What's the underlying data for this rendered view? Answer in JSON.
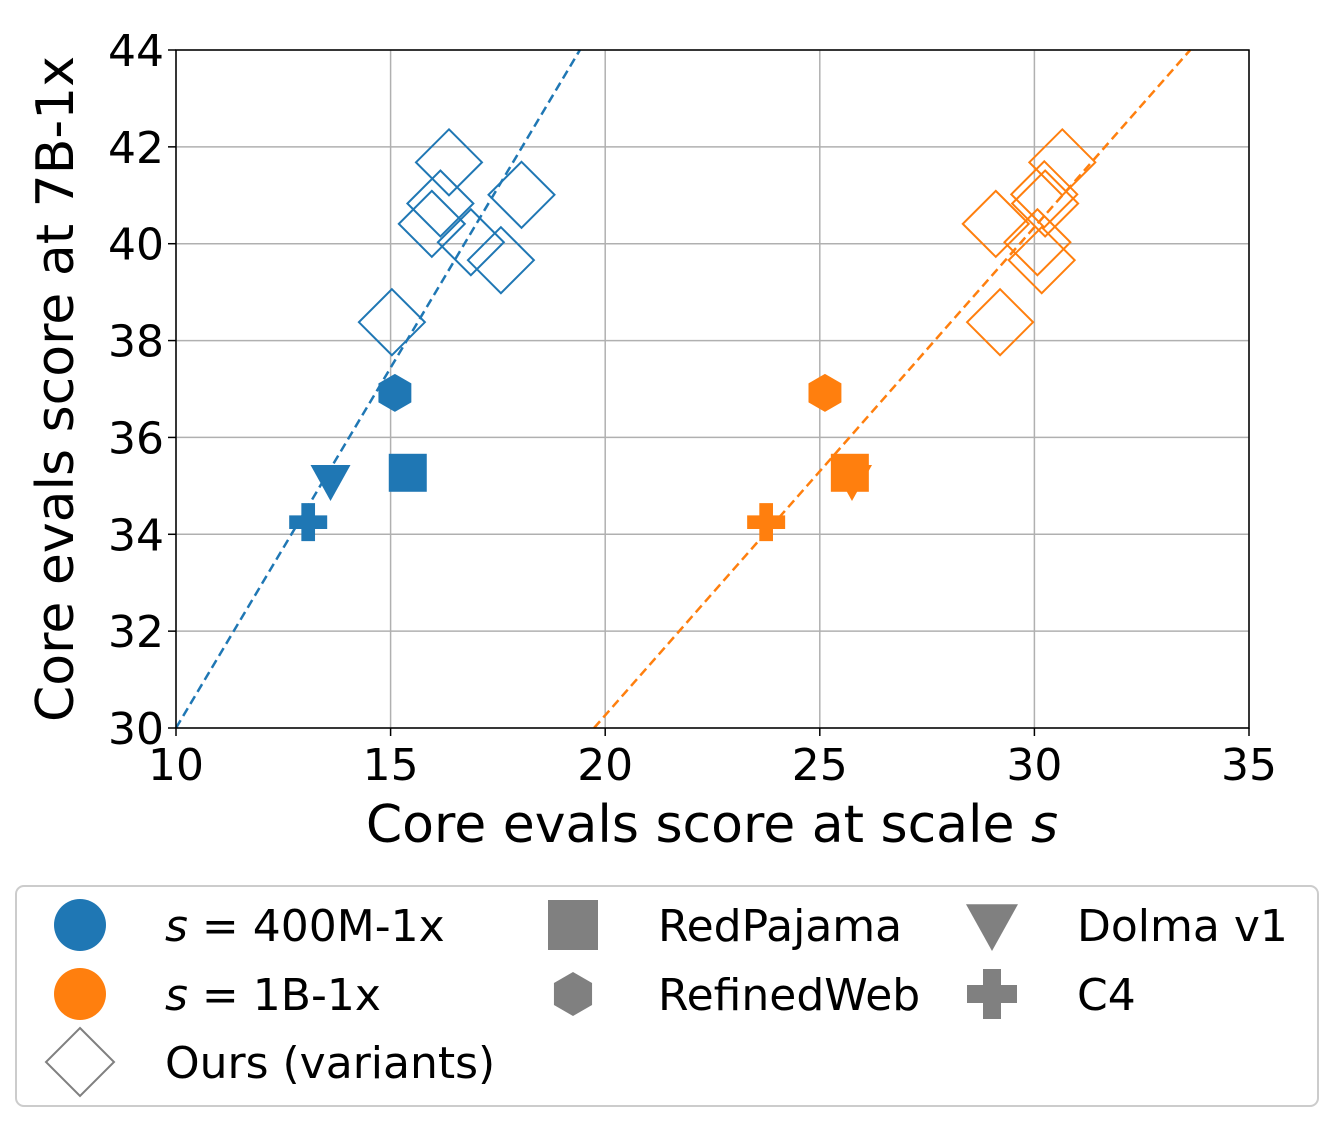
{
  "chart_data": {
    "type": "scatter",
    "xlabel_prefix": "Core evals score at scale ",
    "xlabel_var": "s",
    "ylabel": "Core evals score at 7B-1x",
    "xlim": [
      10,
      35
    ],
    "ylim": [
      30,
      44
    ],
    "xticks": [
      10,
      15,
      20,
      25,
      30,
      35
    ],
    "yticks": [
      30,
      32,
      34,
      36,
      38,
      40,
      42,
      44
    ],
    "grid": true,
    "legend_placement": "bottom (below plot)",
    "colors": {
      "s400M": "#1f77b4",
      "s1B": "#ff7f0e",
      "neutral": "#808080"
    },
    "series": [
      {
        "name": "s = 400M-1x",
        "color": "#1f77b4",
        "variants": [
          [
            16.36,
            41.68
          ],
          [
            16.16,
            40.83
          ],
          [
            15.96,
            40.41
          ],
          [
            16.87,
            40.03
          ],
          [
            18.05,
            41.01
          ],
          [
            17.57,
            39.66
          ],
          [
            15.03,
            38.38
          ]
        ],
        "baselines": {
          "RedPajama": [
            15.4,
            35.27
          ],
          "RefinedWeb": [
            15.1,
            36.92
          ],
          "Dolma v1": [
            13.6,
            35.1
          ],
          "C4": [
            13.08,
            34.25
          ]
        },
        "fit_line": [
          [
            10,
            30
          ],
          [
            19.41,
            44
          ]
        ]
      },
      {
        "name": "s = 1B-1x",
        "color": "#ff7f0e",
        "variants": [
          [
            30.65,
            41.68
          ],
          [
            30.23,
            41.02
          ],
          [
            30.25,
            40.83
          ],
          [
            29.1,
            40.41
          ],
          [
            30.07,
            40.03
          ],
          [
            30.17,
            39.66
          ],
          [
            29.2,
            38.38
          ]
        ],
        "baselines": {
          "RedPajama": [
            25.7,
            35.27
          ],
          "RefinedWeb": [
            25.12,
            36.92
          ],
          "Dolma v1": [
            25.75,
            35.1
          ],
          "C4": [
            23.75,
            34.25
          ]
        },
        "fit_line": [
          [
            19.74,
            30
          ],
          [
            33.63,
            44
          ]
        ]
      }
    ],
    "legend": [
      {
        "label_var": "s",
        "label_rest": " = 400M-1x",
        "marker": "circle",
        "color": "#1f77b4"
      },
      {
        "label_var": "s",
        "label_rest": " = 1B-1x",
        "marker": "circle",
        "color": "#ff7f0e"
      },
      {
        "label": "Ours (variants)",
        "marker": "diamond-open",
        "color": "#808080"
      },
      {
        "label": "RedPajama",
        "marker": "square",
        "color": "#808080"
      },
      {
        "label": "RefinedWeb",
        "marker": "hexagon",
        "color": "#808080"
      },
      {
        "label": "Dolma v1",
        "marker": "triangle-down",
        "color": "#808080"
      },
      {
        "label": "C4",
        "marker": "plus",
        "color": "#808080"
      }
    ]
  }
}
